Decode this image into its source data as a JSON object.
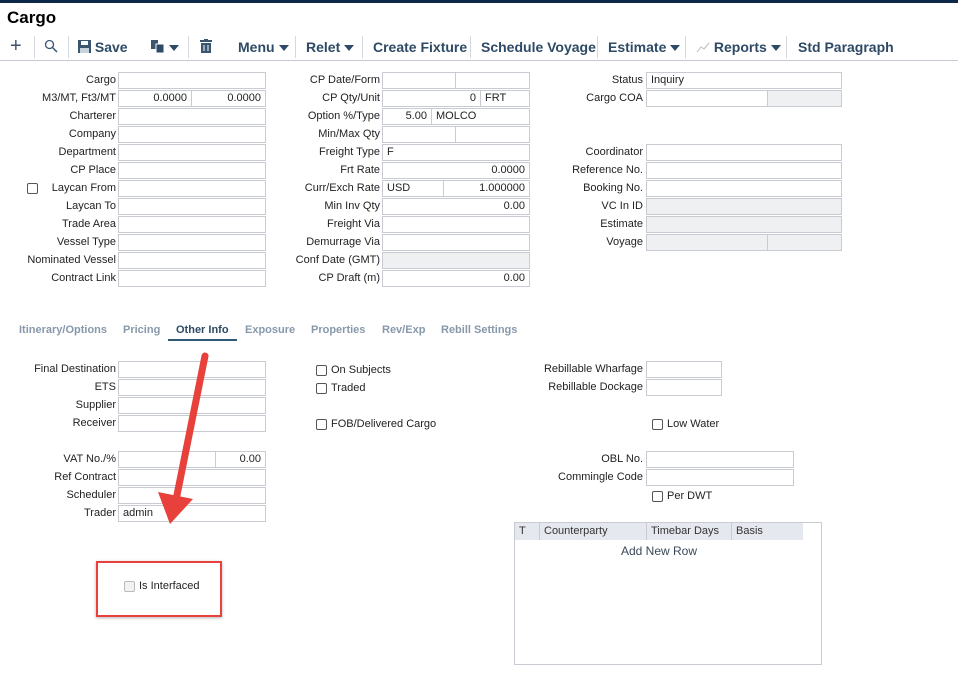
{
  "title": "Cargo",
  "toolbar": {
    "icons": [
      "plus-icon",
      "search-icon",
      "save-icon",
      "copy-icon",
      "trash-icon",
      "chart-icon"
    ],
    "save": "Save",
    "menu": "Menu",
    "relet": "Relet",
    "create_fixture": "Create Fixture",
    "schedule_voyage": "Schedule Voyage",
    "estimate": "Estimate",
    "reports": "Reports",
    "std_paragraph": "Std Paragraph"
  },
  "header_fields": [
    {
      "label": "Cargo",
      "values": [
        ""
      ]
    },
    {
      "label": "M3/MT, Ft3/MT",
      "values": [
        "0.0000",
        "0.0000"
      ]
    },
    {
      "label": "Charterer",
      "values": [
        ""
      ]
    },
    {
      "label": "Company",
      "values": [
        ""
      ]
    },
    {
      "label": "Department",
      "values": [
        ""
      ]
    },
    {
      "label": "CP Place",
      "values": [
        ""
      ]
    },
    {
      "label": "Laycan From",
      "values": [
        ""
      ],
      "checkbox": false
    },
    {
      "label": "Laycan To",
      "values": [
        ""
      ]
    },
    {
      "label": "Trade Area",
      "values": [
        ""
      ]
    },
    {
      "label": "Vessel Type",
      "values": [
        ""
      ]
    },
    {
      "label": "Nominated Vessel",
      "values": [
        ""
      ]
    },
    {
      "label": "Contract Link",
      "values": [
        ""
      ]
    },
    {
      "label": "CP Date/Form",
      "values": [
        "",
        ""
      ]
    },
    {
      "label": "CP Qty/Unit",
      "values": [
        "0",
        "FRT"
      ]
    },
    {
      "label": "Option %/Type",
      "values": [
        "5.00",
        "MOLCO"
      ]
    },
    {
      "label": "Min/Max Qty",
      "values": [
        "",
        ""
      ]
    },
    {
      "label": "Freight Type",
      "values": [
        "F"
      ]
    },
    {
      "label": "Frt Rate",
      "values": [
        "0.0000"
      ]
    },
    {
      "label": "Curr/Exch Rate",
      "values": [
        "USD",
        "1.000000"
      ]
    },
    {
      "label": "Min Inv Qty",
      "values": [
        "0.00"
      ]
    },
    {
      "label": "Freight Via",
      "values": [
        ""
      ]
    },
    {
      "label": "Demurrage Via",
      "values": [
        ""
      ]
    },
    {
      "label": "Conf Date (GMT)",
      "values": [
        ""
      ]
    },
    {
      "label": "CP Draft (m)",
      "values": [
        "0.00"
      ]
    },
    {
      "label": "Status",
      "values": [
        "Inquiry"
      ]
    },
    {
      "label": "Cargo COA",
      "values": [
        "",
        ""
      ]
    },
    {
      "label": "Coordinator",
      "values": [
        ""
      ]
    },
    {
      "label": "Reference No.",
      "values": [
        ""
      ]
    },
    {
      "label": "Booking No.",
      "values": [
        ""
      ]
    },
    {
      "label": "VC In ID",
      "values": [
        ""
      ]
    },
    {
      "label": "Estimate",
      "values": [
        ""
      ]
    },
    {
      "label": "Voyage",
      "values": [
        "",
        ""
      ]
    }
  ],
  "tabs": [
    {
      "label": "Itinerary/Options"
    },
    {
      "label": "Pricing"
    },
    {
      "label": "Other Info",
      "active": true
    },
    {
      "label": "Exposure"
    },
    {
      "label": "Properties"
    },
    {
      "label": "Rev/Exp"
    },
    {
      "label": "Rebill Settings"
    }
  ],
  "other_fields": [
    {
      "label": "Final Destination",
      "values": [
        ""
      ]
    },
    {
      "label": "ETS",
      "values": [
        ""
      ]
    },
    {
      "label": "Supplier",
      "values": [
        ""
      ]
    },
    {
      "label": "Receiver",
      "values": [
        ""
      ]
    },
    {
      "label": "VAT No./%",
      "values": [
        "",
        "0.00"
      ]
    },
    {
      "label": "Ref Contract",
      "values": [
        ""
      ]
    },
    {
      "label": "Scheduler",
      "values": [
        ""
      ]
    },
    {
      "label": "Trader",
      "values": [
        "admin"
      ]
    },
    {
      "label": "Rebillable Wharfage",
      "values": [
        ""
      ]
    },
    {
      "label": "Rebillable Dockage",
      "values": [
        ""
      ]
    },
    {
      "label": "OBL No.",
      "values": [
        ""
      ]
    },
    {
      "label": "Commingle Code",
      "values": [
        ""
      ]
    }
  ],
  "checkboxes": [
    {
      "label": "On Subjects",
      "checked": false
    },
    {
      "label": "Traded",
      "checked": false
    },
    {
      "label": "FOB/Delivered Cargo",
      "checked": false
    },
    {
      "label": "Low Water",
      "checked": false
    },
    {
      "label": "Per DWT",
      "checked": false
    },
    {
      "label": "Is Interfaced",
      "checked": false,
      "disabled": true
    }
  ],
  "grid": {
    "columns": [
      "T",
      "Counterparty",
      "Timebar Days",
      "Basis"
    ],
    "add_row": "Add New Row"
  },
  "annotation": {
    "color": "#e8403a"
  }
}
